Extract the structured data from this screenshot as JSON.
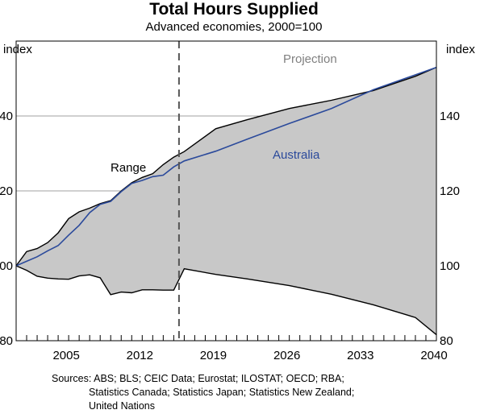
{
  "chart_data": {
    "type": "area",
    "title": "Total Hours Supplied",
    "subtitle": "Advanced economies, 2000=100",
    "ylabel_left": "index",
    "ylabel_right": "index",
    "ylim": [
      80,
      160
    ],
    "yticks": [
      80,
      100,
      120,
      140
    ],
    "xlim": [
      2000,
      2040
    ],
    "xticks": [
      2005,
      2012,
      2019,
      2026,
      2033,
      2040
    ],
    "projection_start": 2015.5,
    "labels": {
      "projection": "Projection",
      "range": "Range",
      "australia": "Australia"
    },
    "colors": {
      "range_fill": "#c8c8c8",
      "range_line": "#000000",
      "australia": "#2b4a9b",
      "projection_line": "#555555",
      "projection_text": "#808080"
    },
    "series": [
      {
        "name": "Range upper",
        "x": [
          2000,
          2001,
          2002,
          2003,
          2004,
          2005,
          2006,
          2007,
          2008,
          2009,
          2010,
          2011,
          2012,
          2013,
          2014,
          2015,
          2016,
          2019,
          2022,
          2026,
          2030,
          2034,
          2038,
          2040
        ],
        "values": [
          100,
          103.8,
          104.6,
          106.2,
          108.8,
          112.6,
          114.4,
          115.4,
          116.6,
          117.4,
          120.0,
          122.2,
          123.6,
          124.6,
          127.0,
          129.0,
          130.5,
          136.6,
          139.0,
          142.0,
          144.2,
          146.8,
          150.6,
          153.0
        ]
      },
      {
        "name": "Range lower",
        "x": [
          2000,
          2001,
          2002,
          2003,
          2004,
          2005,
          2006,
          2007,
          2008,
          2009,
          2010,
          2011,
          2012,
          2013,
          2014,
          2015,
          2016,
          2019,
          2022,
          2026,
          2030,
          2034,
          2038,
          2040
        ],
        "values": [
          100,
          98.8,
          97.2,
          96.7,
          96.5,
          96.4,
          97.3,
          97.6,
          96.8,
          92.3,
          93.0,
          92.8,
          93.6,
          93.6,
          93.5,
          93.5,
          99.2,
          97.7,
          96.5,
          94.7,
          92.4,
          89.6,
          86.2,
          81.6
        ]
      },
      {
        "name": "Australia",
        "x": [
          2000,
          2001,
          2002,
          2003,
          2004,
          2005,
          2006,
          2007,
          2008,
          2009,
          2010,
          2011,
          2012,
          2013,
          2014,
          2015,
          2016,
          2019,
          2022,
          2026,
          2030,
          2034,
          2038,
          2040
        ],
        "values": [
          100,
          101.2,
          102.4,
          104.0,
          105.4,
          108.2,
          110.8,
          114.2,
          116.4,
          117.2,
          119.8,
          122.0,
          122.8,
          123.8,
          124.2,
          126.4,
          128.0,
          130.6,
          133.8,
          138.0,
          142.0,
          147.0,
          151.0,
          153.0
        ]
      }
    ]
  },
  "sources": [
    "Sources: ABS; BLS; CEIC Data; Eurostat; ILOSTAT; OECD; RBA;",
    "Statistics Canada; Statistics Japan; Statistics New Zealand;",
    "United Nations"
  ]
}
